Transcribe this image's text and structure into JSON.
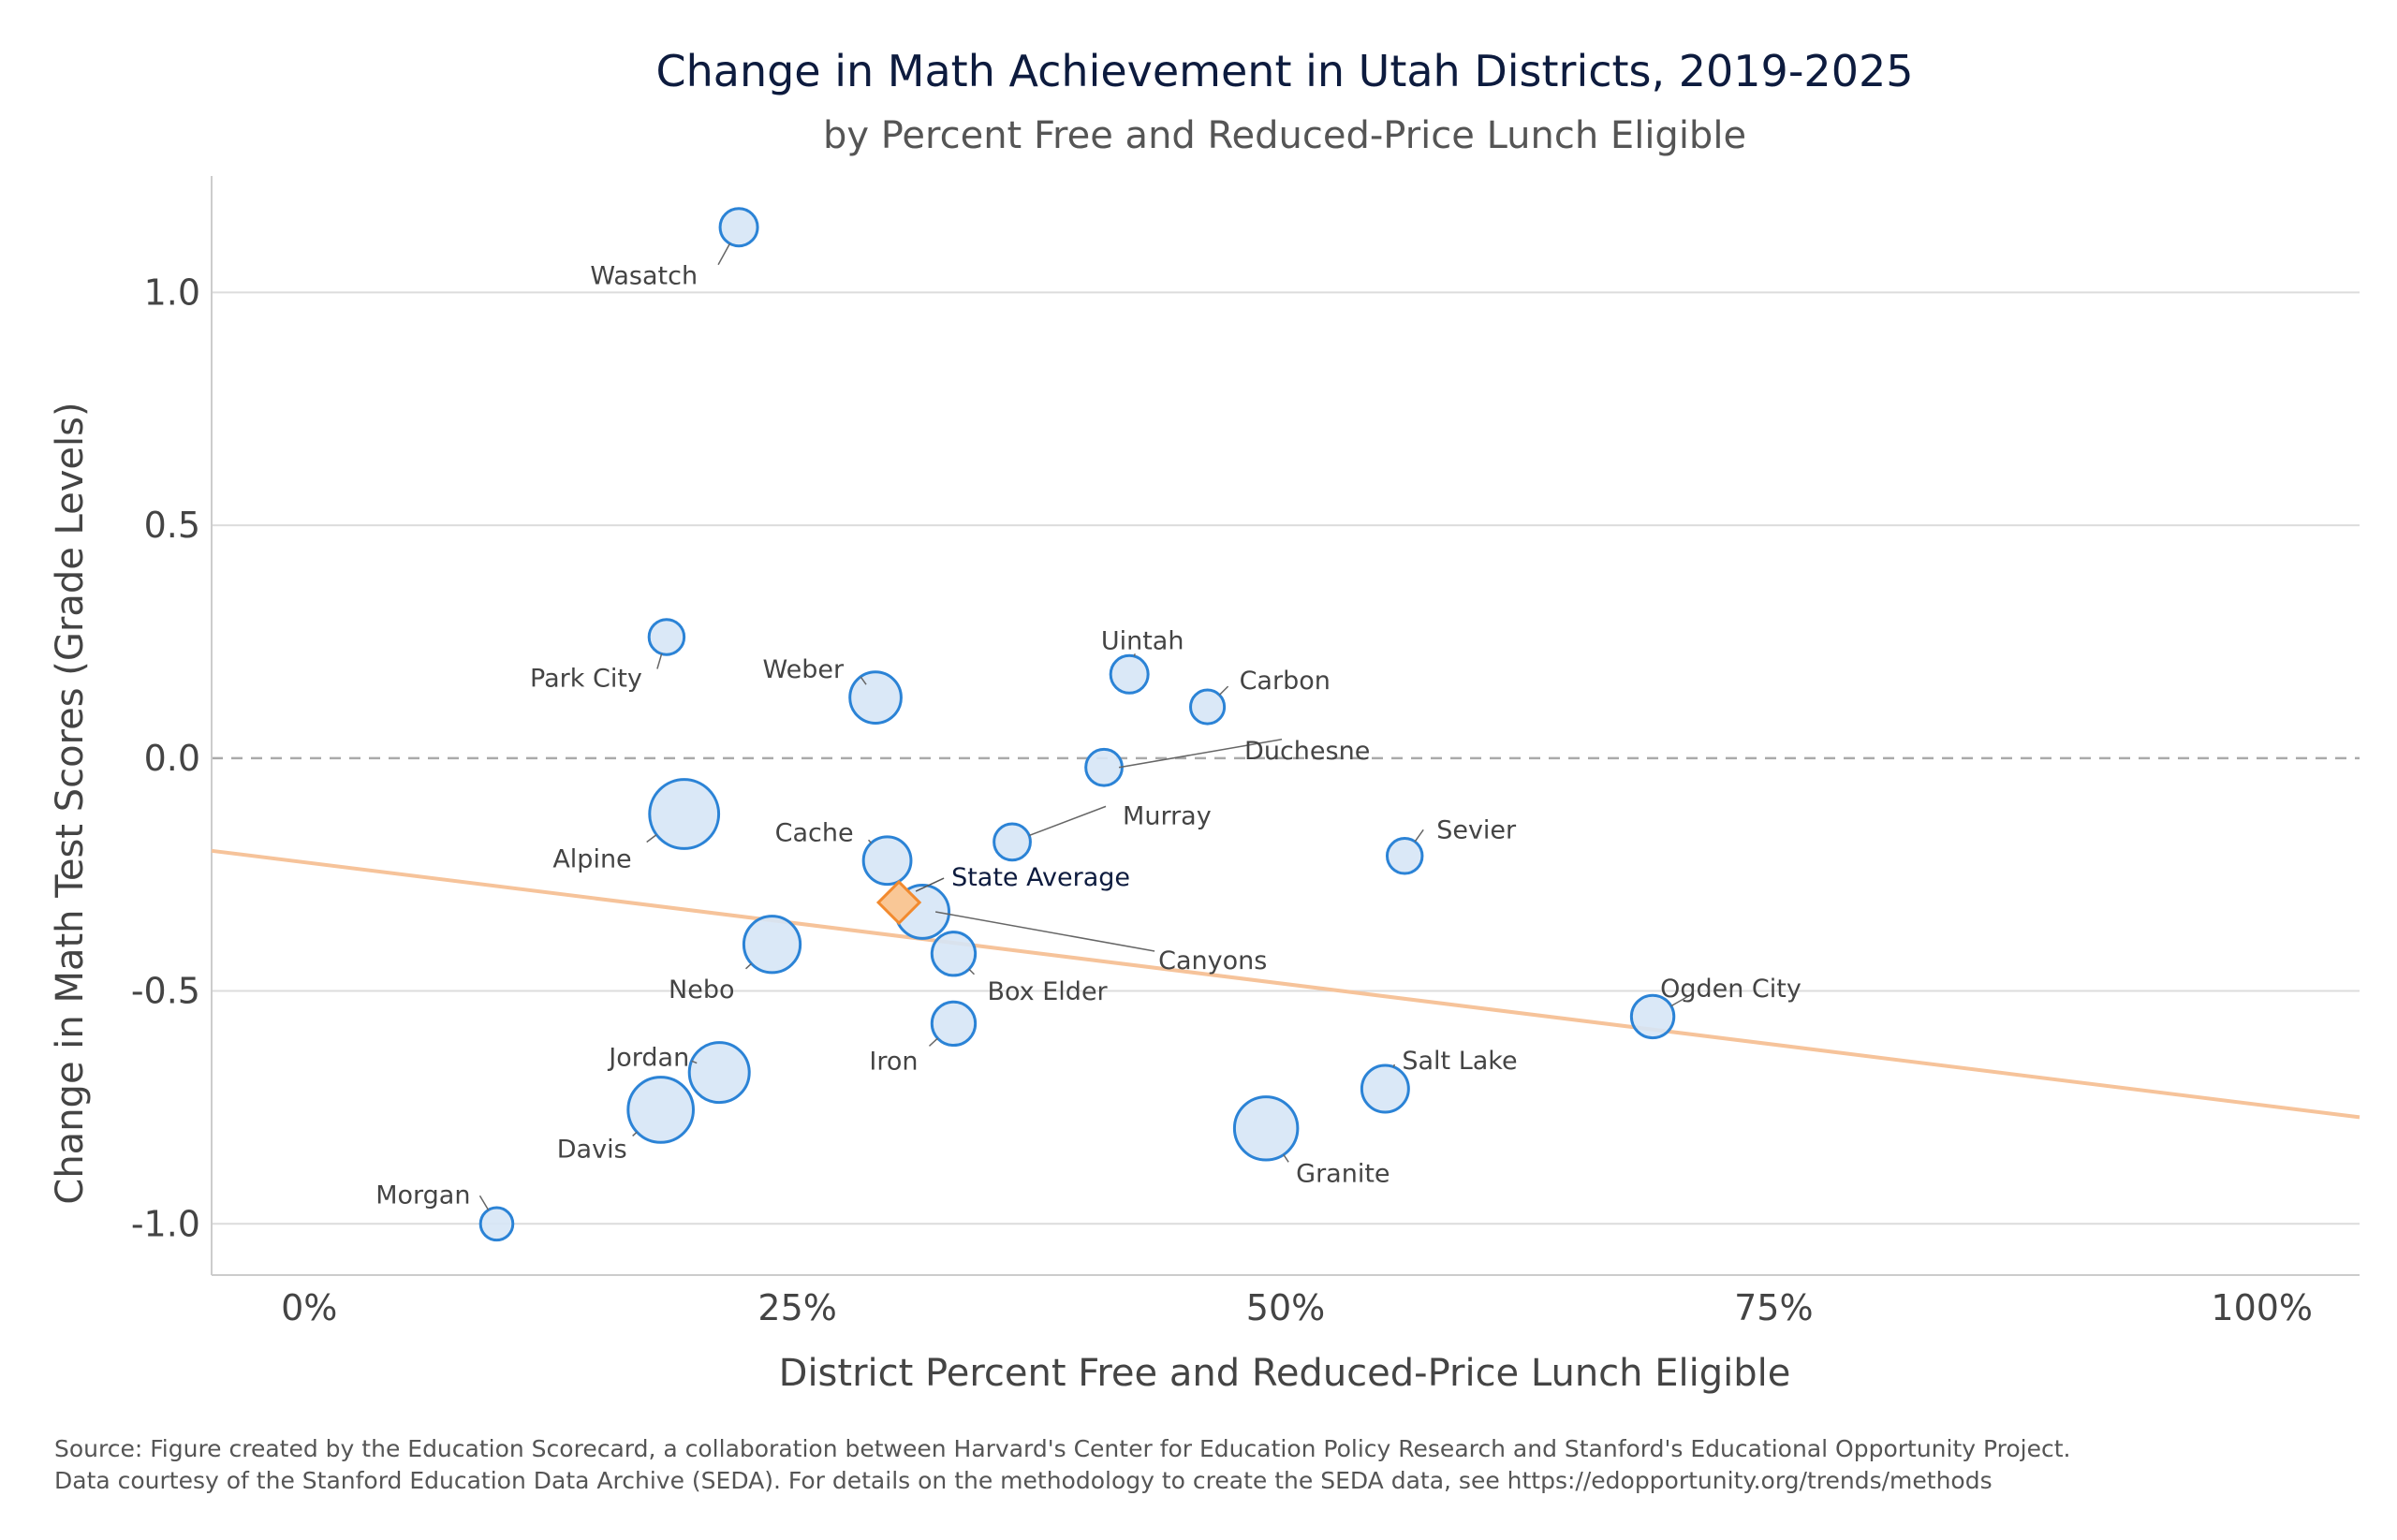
{
  "chart_data": {
    "type": "scatter",
    "title": "Change in Math Achievement in Utah Districts, 2019-2025",
    "subtitle": "by Percent Free and Reduced-Price Lunch Eligible",
    "xlabel": "District Percent Free and Reduced-Price Lunch Eligible",
    "ylabel": "Change in Math Test Scores (Grade Levels)",
    "xlim": [
      -0.05,
      1.05
    ],
    "ylim": [
      -1.11,
      1.25
    ],
    "x_ticks": [
      {
        "value": 0.0,
        "label": "0%"
      },
      {
        "value": 0.25,
        "label": "25%"
      },
      {
        "value": 0.5,
        "label": "50%"
      },
      {
        "value": 0.75,
        "label": "75%"
      },
      {
        "value": 1.0,
        "label": "100%"
      }
    ],
    "y_ticks": [
      {
        "value": 1.0,
        "label": "1.0"
      },
      {
        "value": 0.5,
        "label": "0.5"
      },
      {
        "value": 0.0,
        "label": "0.0"
      },
      {
        "value": -0.5,
        "label": "-0.5"
      },
      {
        "value": -1.0,
        "label": "-1.0"
      }
    ],
    "grid": true,
    "zero_line": "dashed",
    "point_color": "#2b83d6",
    "point_fill": "#d6e6f6",
    "trend_color": "#f6c39a",
    "state_marker_color": "#f28a2e",
    "state_marker_fill": "#f9c796",
    "trend_line": {
      "intercept": -0.225,
      "slope": -0.52
    },
    "points": [
      {
        "name": "Wasatch",
        "x": 0.22,
        "y": 1.14,
        "size": 1.0
      },
      {
        "name": "Park City",
        "x": 0.183,
        "y": 0.26,
        "size": 0.8
      },
      {
        "name": "Weber",
        "x": 0.29,
        "y": 0.13,
        "size": 2.6
      },
      {
        "name": "Uintah",
        "x": 0.42,
        "y": 0.18,
        "size": 1.0
      },
      {
        "name": "Carbon",
        "x": 0.46,
        "y": 0.11,
        "size": 0.7
      },
      {
        "name": "Duchesne",
        "x": 0.407,
        "y": -0.02,
        "size": 0.9
      },
      {
        "name": "Alpine",
        "x": 0.192,
        "y": -0.12,
        "size": 5.8
      },
      {
        "name": "Cache",
        "x": 0.296,
        "y": -0.22,
        "size": 2.1
      },
      {
        "name": "Murray",
        "x": 0.36,
        "y": -0.18,
        "size": 0.9
      },
      {
        "name": "Sevier",
        "x": 0.561,
        "y": -0.21,
        "size": 0.8
      },
      {
        "name": "Canyons",
        "x": 0.314,
        "y": -0.33,
        "size": 2.9
      },
      {
        "name": "Nebo",
        "x": 0.237,
        "y": -0.4,
        "size": 3.4
      },
      {
        "name": "Box Elder",
        "x": 0.33,
        "y": -0.42,
        "size": 1.6
      },
      {
        "name": "Iron",
        "x": 0.33,
        "y": -0.57,
        "size": 1.6
      },
      {
        "name": "Ogden City",
        "x": 0.688,
        "y": -0.555,
        "size": 1.5
      },
      {
        "name": "Jordan",
        "x": 0.21,
        "y": -0.675,
        "size": 4.0
      },
      {
        "name": "Salt Lake",
        "x": 0.551,
        "y": -0.71,
        "size": 2.0
      },
      {
        "name": "Davis",
        "x": 0.18,
        "y": -0.755,
        "size": 5.0
      },
      {
        "name": "Granite",
        "x": 0.49,
        "y": -0.795,
        "size": 4.6
      },
      {
        "name": "Morgan",
        "x": 0.096,
        "y": -1.0,
        "size": 0.6
      }
    ],
    "state_average": {
      "name": "State Average",
      "x": 0.302,
      "y": -0.31
    }
  },
  "source": {
    "line1": "Source: Figure created by the Education Scorecard, a collaboration between Harvard's Center for Education Policy Research and Stanford's Educational Opportunity Project.",
    "line2": "Data courtesy of the Stanford Education Data Archive (SEDA). For details on the methodology to create the SEDA data, see https://edopportunity.org/trends/methods"
  }
}
